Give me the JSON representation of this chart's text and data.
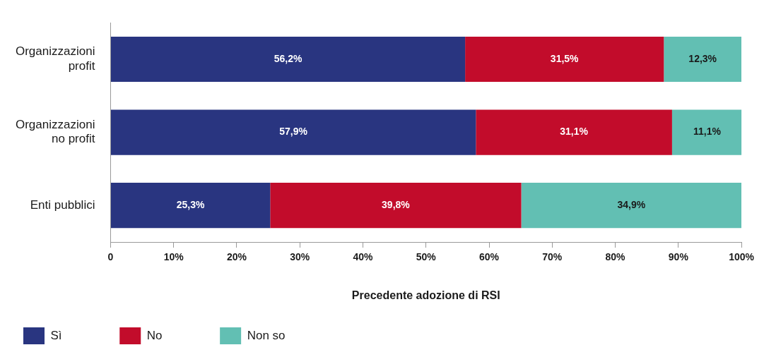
{
  "chart_data": {
    "type": "bar",
    "orientation": "horizontal",
    "stacked": true,
    "xlabel": "Precedente adozione di RSI",
    "categories": [
      "Organizzazioni profit",
      "Organizzazioni no profit",
      "Enti pubblici"
    ],
    "series": [
      {
        "name": "Sì",
        "color": "#293580",
        "values": [
          56.2,
          57.9,
          25.3
        ],
        "value_labels": [
          "56,2%",
          "57,9%",
          "25,3%"
        ]
      },
      {
        "name": "No",
        "color": "#c20c2b",
        "values": [
          31.5,
          31.1,
          39.8
        ],
        "value_labels": [
          "31,5%",
          "31,1%",
          "39,8%"
        ]
      },
      {
        "name": "Non so",
        "color": "#62bfb3",
        "values": [
          12.3,
          11.1,
          34.9
        ],
        "value_labels": [
          "12,3%",
          "11,1%",
          "34,9%"
        ]
      }
    ],
    "xlim": [
      0,
      100
    ],
    "xticks": [
      0,
      {
        "value": 10,
        "label": "10%"
      },
      {
        "value": 20,
        "label": "20%"
      },
      {
        "value": 30,
        "label": "30%"
      },
      {
        "value": 40,
        "label": "40%"
      },
      {
        "value": 50,
        "label": "50%"
      },
      {
        "value": 60,
        "label": "60%"
      },
      {
        "value": 70,
        "label": "70%"
      },
      {
        "value": 80,
        "label": "80%"
      },
      {
        "value": 90,
        "label": "90%"
      },
      {
        "value": 100,
        "label": "100%"
      }
    ],
    "grid": false,
    "legend": "bottom left"
  }
}
